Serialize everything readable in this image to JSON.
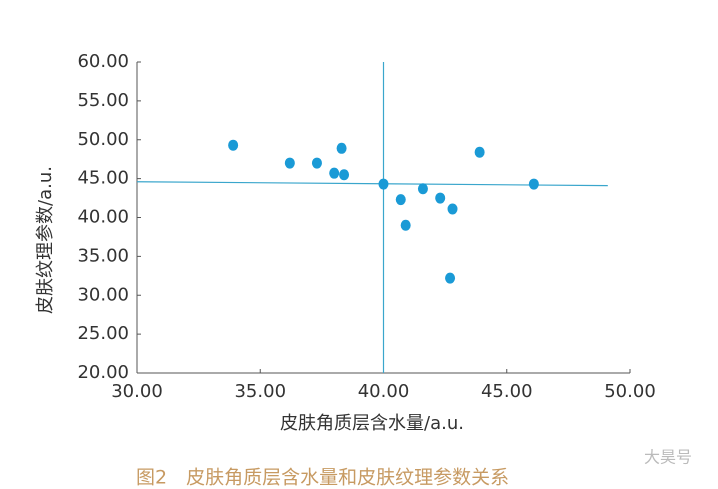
{
  "chart_data": {
    "type": "scatter",
    "xlabel": "皮肤角质层含水量/a.u.",
    "ylabel": "皮肤纹理参数/a.u.",
    "caption": "图2　皮肤角质层含水量和皮肤纹理参数关系",
    "watermark": "大昊号",
    "x": [
      33.9,
      36.2,
      37.3,
      38.0,
      38.3,
      38.4,
      40.0,
      40.7,
      40.9,
      41.6,
      42.3,
      42.8,
      42.7,
      43.9,
      46.1
    ],
    "values": [
      49.3,
      47.0,
      47.0,
      45.7,
      48.9,
      45.5,
      44.3,
      42.3,
      39.0,
      43.7,
      42.5,
      41.1,
      32.2,
      48.4,
      44.3
    ],
    "color": "#1a9ad6",
    "vline": 40,
    "trend": {
      "x": [
        30,
        49.1
      ],
      "y": [
        44.6,
        44.1
      ]
    },
    "line_color": "#3aa6cc",
    "xlim": [
      30,
      50
    ],
    "ylim": [
      20,
      60
    ],
    "xticks": [
      {
        "value": 30,
        "label": "30.00"
      },
      {
        "value": 35,
        "label": "35.00"
      },
      {
        "value": 40,
        "label": "40.00"
      },
      {
        "value": 45,
        "label": "45.00"
      },
      {
        "value": 50,
        "label": "50.00"
      }
    ],
    "yticks": [
      {
        "value": 20,
        "label": "20.00"
      },
      {
        "value": 25,
        "label": "25.00"
      },
      {
        "value": 30,
        "label": "30.00"
      },
      {
        "value": 35,
        "label": "35.00"
      },
      {
        "value": 40,
        "label": "40.00"
      },
      {
        "value": 45,
        "label": "45.00"
      },
      {
        "value": 50,
        "label": "50.00"
      },
      {
        "value": 55,
        "label": "55.00"
      },
      {
        "value": 60,
        "label": "60.00"
      }
    ],
    "grid": false
  }
}
